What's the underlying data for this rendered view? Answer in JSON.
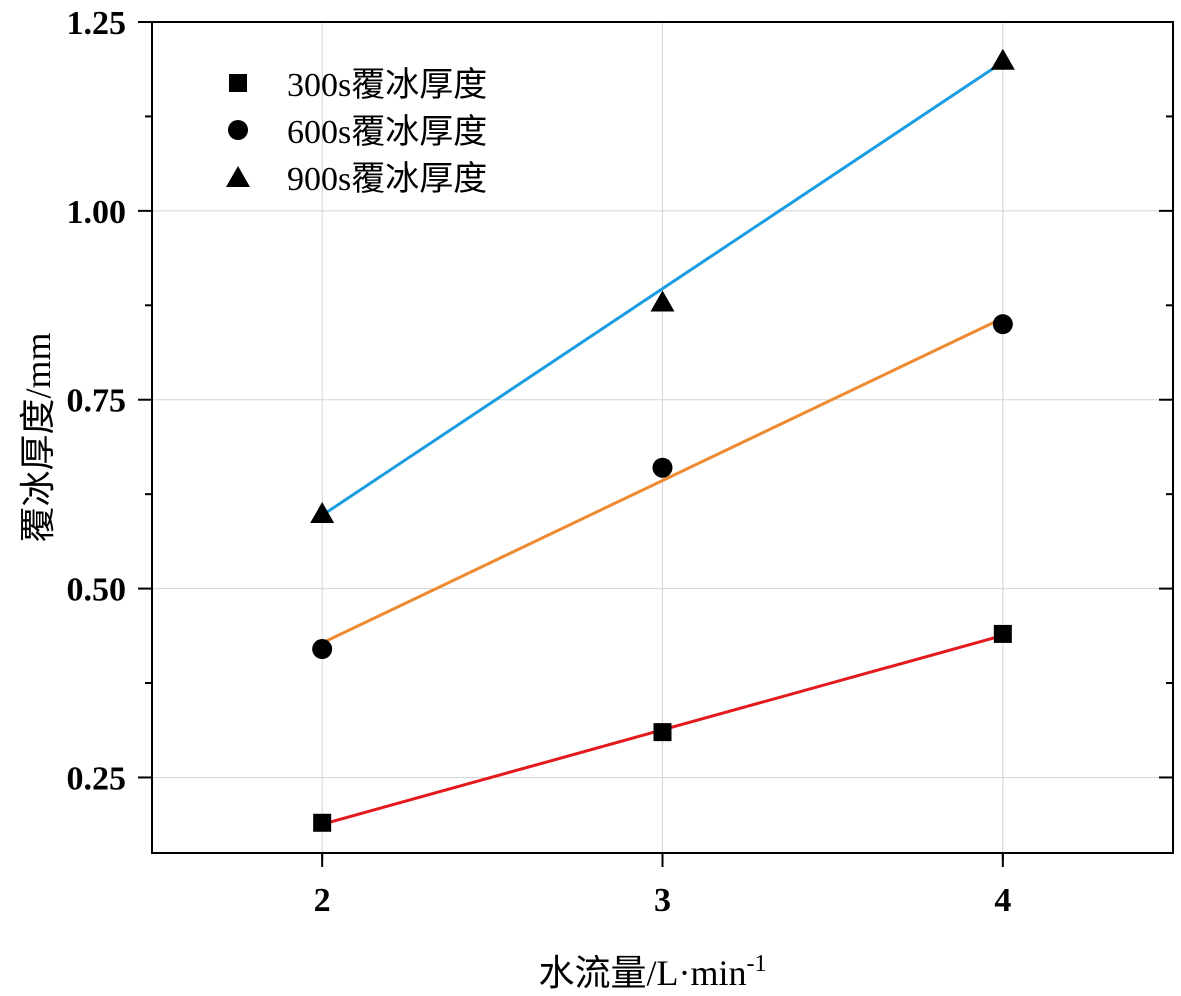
{
  "chart_data": {
    "type": "scatter",
    "title": "",
    "xlabel": "水流量/L·min",
    "xlabel_sup": "-1",
    "ylabel": "覆冰厚度/mm",
    "xlim": [
      1.5,
      4.5
    ],
    "ylim": [
      0.15,
      1.25
    ],
    "x_ticks": [
      2,
      3,
      4
    ],
    "x_tick_labels": [
      "2",
      "3",
      "4"
    ],
    "y_ticks": [
      0.25,
      0.5,
      0.75,
      1.0,
      1.25
    ],
    "y_tick_labels": [
      "0.25",
      "0.50",
      "0.75",
      "1.00",
      "1.25"
    ],
    "grid": true,
    "legend_position": "top-left",
    "x": [
      2,
      3,
      4
    ],
    "series": [
      {
        "name": "300s覆冰厚度",
        "marker": "square",
        "values": [
          0.19,
          0.31,
          0.44
        ],
        "fit": {
          "start": [
            2,
            0.188
          ],
          "end": [
            4,
            0.438
          ],
          "color": "#e3191c"
        }
      },
      {
        "name": "600s覆冰厚度",
        "marker": "circle",
        "values": [
          0.42,
          0.66,
          0.85
        ],
        "fit": {
          "start": [
            2,
            0.428
          ],
          "end": [
            4,
            0.858
          ],
          "color": "#ee8a32"
        }
      },
      {
        "name": "900s覆冰厚度",
        "marker": "triangle",
        "values": [
          0.6,
          0.88,
          1.2
        ],
        "fit": {
          "start": [
            2,
            0.597
          ],
          "end": [
            4,
            1.197
          ],
          "color": "#1a9de0"
        }
      }
    ]
  }
}
